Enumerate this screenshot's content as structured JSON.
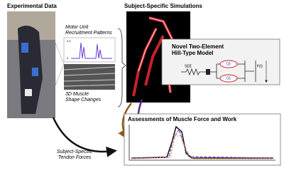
{
  "header": {
    "left": "Experimental Data",
    "right": "Subject-Specific Simulations"
  },
  "motor_units": {
    "label": [
      "Motor Unit",
      "Recruitment Patterns"
    ],
    "ticks": [
      "2.5",
      "0"
    ]
  },
  "muscle_shape": {
    "label": [
      "3D Muscle",
      "Shape Changes"
    ]
  },
  "model": {
    "title": [
      "Novel Two-Element",
      "Hill-Type Model"
    ],
    "see": "SEE",
    "ce1": "CE",
    "ce2": "CE",
    "force": "F(t)"
  },
  "assessment": {
    "title": "Assessments of Muscle Force and Work"
  },
  "tendon": {
    "label": [
      "Subject-Specific",
      "Tendon Forces"
    ]
  }
}
